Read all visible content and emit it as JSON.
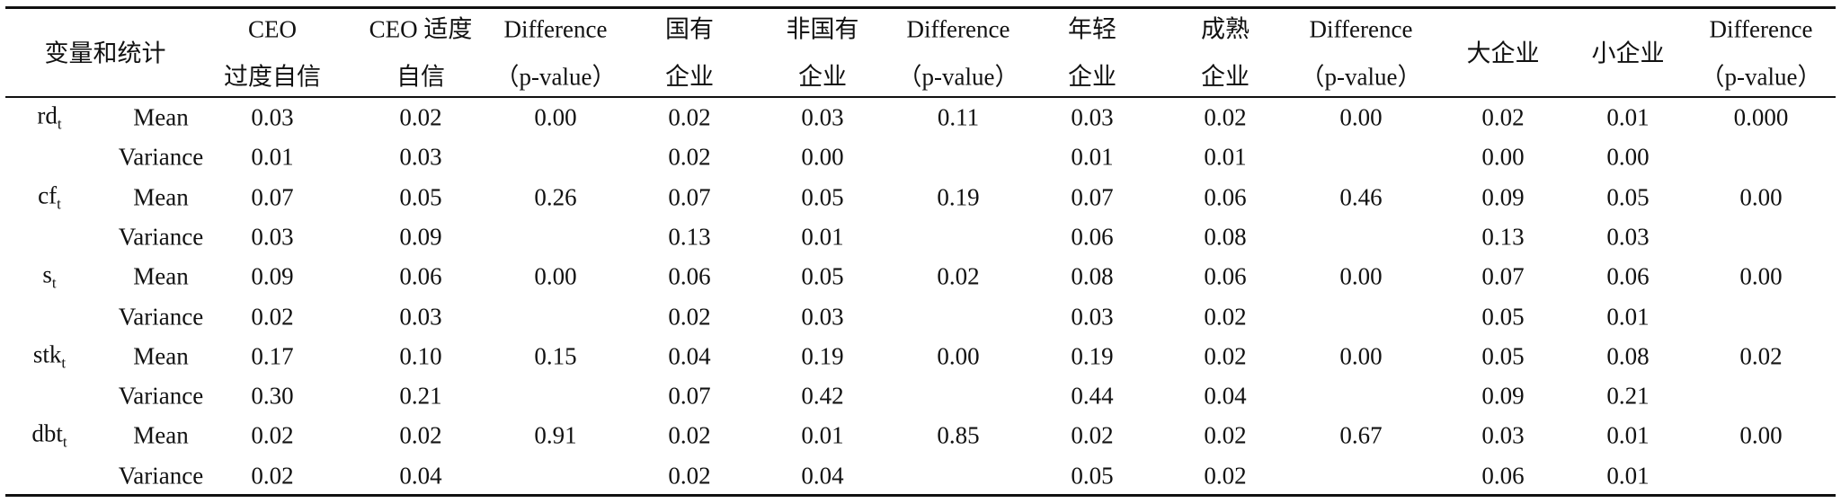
{
  "header": {
    "group_label": "变量和统计",
    "columns": [
      [
        "CEO",
        "过度自信"
      ],
      [
        "CEO 适度",
        "自信"
      ],
      [
        "Difference",
        "（p-value）"
      ],
      [
        "国有",
        "企业"
      ],
      [
        "非国有",
        "企业"
      ],
      [
        "Difference",
        "（p-value）"
      ],
      [
        "年轻",
        "企业"
      ],
      [
        "成熟",
        "企业"
      ],
      [
        "Difference",
        "（p-value）"
      ],
      [
        "大企业"
      ],
      [
        "小企业"
      ],
      [
        "Difference",
        "（p-value）"
      ]
    ]
  },
  "variables": [
    {
      "name": "rd",
      "sub": "t",
      "stats": [
        {
          "label": "Mean",
          "values": [
            "0.03",
            "0.02",
            "0.00",
            "0.02",
            "0.03",
            "0.11",
            "0.03",
            "0.02",
            "0.00",
            "0.02",
            "0.01",
            "0.000"
          ]
        },
        {
          "label": "Variance",
          "values": [
            "0.01",
            "0.03",
            null,
            "0.02",
            "0.00",
            null,
            "0.01",
            "0.01",
            null,
            "0.00",
            "0.00",
            null
          ]
        }
      ]
    },
    {
      "name": "cf",
      "sub": "t",
      "stats": [
        {
          "label": "Mean",
          "values": [
            "0.07",
            "0.05",
            "0.26",
            "0.07",
            "0.05",
            "0.19",
            "0.07",
            "0.06",
            "0.46",
            "0.09",
            "0.05",
            "0.00"
          ]
        },
        {
          "label": "Variance",
          "values": [
            "0.03",
            "0.09",
            null,
            "0.13",
            "0.01",
            null,
            "0.06",
            "0.08",
            null,
            "0.13",
            "0.03",
            null
          ]
        }
      ]
    },
    {
      "name": "s",
      "sub": "t",
      "stats": [
        {
          "label": "Mean",
          "values": [
            "0.09",
            "0.06",
            "0.00",
            "0.06",
            "0.05",
            "0.02",
            "0.08",
            "0.06",
            "0.00",
            "0.07",
            "0.06",
            "0.00"
          ]
        },
        {
          "label": "Variance",
          "values": [
            "0.02",
            "0.03",
            null,
            "0.02",
            "0.03",
            null,
            "0.03",
            "0.02",
            null,
            "0.05",
            "0.01",
            null
          ]
        }
      ]
    },
    {
      "name": "stk",
      "sub": "t",
      "stats": [
        {
          "label": "Mean",
          "values": [
            "0.17",
            "0.10",
            "0.15",
            "0.04",
            "0.19",
            "0.00",
            "0.19",
            "0.02",
            "0.00",
            "0.05",
            "0.08",
            "0.02"
          ]
        },
        {
          "label": "Variance",
          "values": [
            "0.30",
            "0.21",
            null,
            "0.07",
            "0.42",
            null,
            "0.44",
            "0.04",
            null,
            "0.09",
            "0.21",
            null
          ]
        }
      ]
    },
    {
      "name": "dbt",
      "sub": "t",
      "stats": [
        {
          "label": "Mean",
          "values": [
            "0.02",
            "0.02",
            "0.91",
            "0.02",
            "0.01",
            "0.85",
            "0.02",
            "0.02",
            "0.67",
            "0.03",
            "0.01",
            "0.00"
          ]
        },
        {
          "label": "Variance",
          "values": [
            "0.02",
            "0.04",
            null,
            "0.02",
            "0.04",
            null,
            "0.05",
            "0.02",
            null,
            "0.06",
            "0.01",
            null
          ]
        }
      ]
    }
  ]
}
